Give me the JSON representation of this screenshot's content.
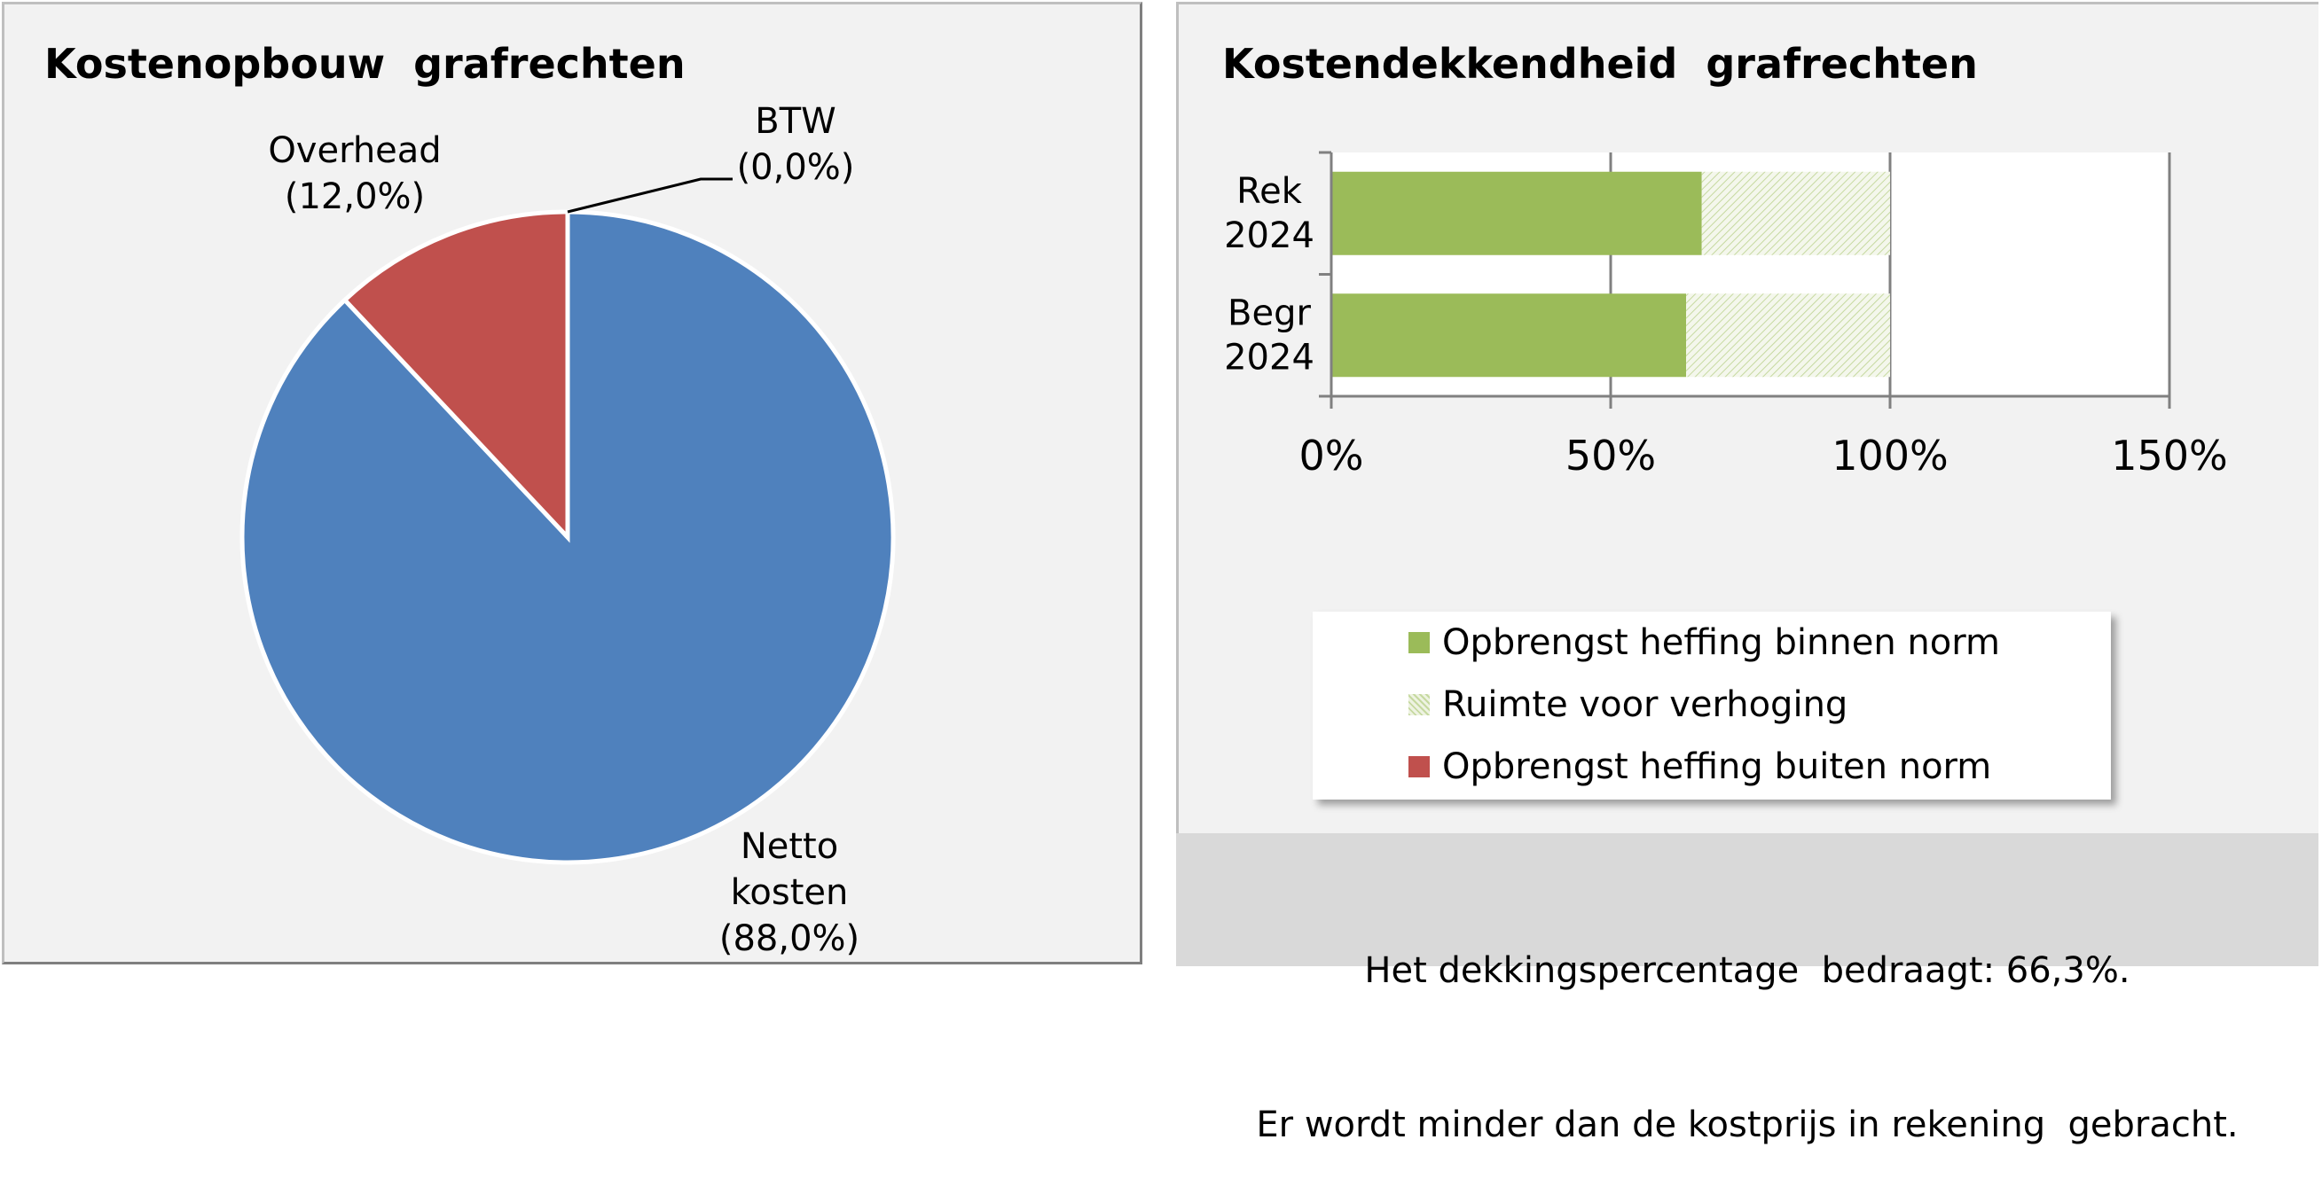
{
  "left": {
    "title": "Kostenopbouw  grafrechten"
  },
  "right": {
    "title": "Kostendekkendheid  grafrechten"
  },
  "chart_data": [
    {
      "type": "pie",
      "title": "Kostenopbouw  grafrechten",
      "slices": [
        {
          "name": "Netto kosten",
          "label_lines": [
            "Netto",
            "kosten",
            "(88,0%)"
          ],
          "value": 88.0,
          "color": "#4f81bd"
        },
        {
          "name": "BTW",
          "label_lines": [
            "BTW",
            "(0,0%)"
          ],
          "value": 0.0,
          "color": "#9bbb59"
        },
        {
          "name": "Overhead",
          "label_lines": [
            "Overhead",
            "(12,0%)"
          ],
          "value": 12.0,
          "color": "#c0504d"
        }
      ]
    },
    {
      "type": "bar",
      "orientation": "horizontal",
      "stacked": true,
      "title": "Kostendekkendheid  grafrechten",
      "categories": [
        "Rek 2024",
        "Begr 2024"
      ],
      "category_label_lines": [
        [
          "Rek",
          "2024"
        ],
        [
          "Begr",
          "2024"
        ]
      ],
      "series": [
        {
          "name": "Opbrengst heffing binnen norm",
          "values": [
            66.3,
            63.5
          ],
          "color": "#9bbb59",
          "pattern": "solid"
        },
        {
          "name": "Ruimte voor verhoging",
          "values": [
            33.7,
            36.5
          ],
          "color": "#9bbb59",
          "pattern": "hatched"
        },
        {
          "name": "Opbrengst heffing buiten norm",
          "values": [
            0,
            0
          ],
          "color": "#c0504d",
          "pattern": "solid"
        }
      ],
      "xlim": [
        0,
        150
      ],
      "xticks": [
        0,
        50,
        100,
        150
      ],
      "xtick_labels": [
        "0%",
        "50%",
        "100%",
        "150%"
      ],
      "grid": true,
      "legend_position": "bottom"
    }
  ],
  "footer": {
    "line1": "Het dekkingspercentage  bedraagt: 66,3%.",
    "line2": "Er wordt minder dan de kostprijs in rekening  gebracht."
  }
}
